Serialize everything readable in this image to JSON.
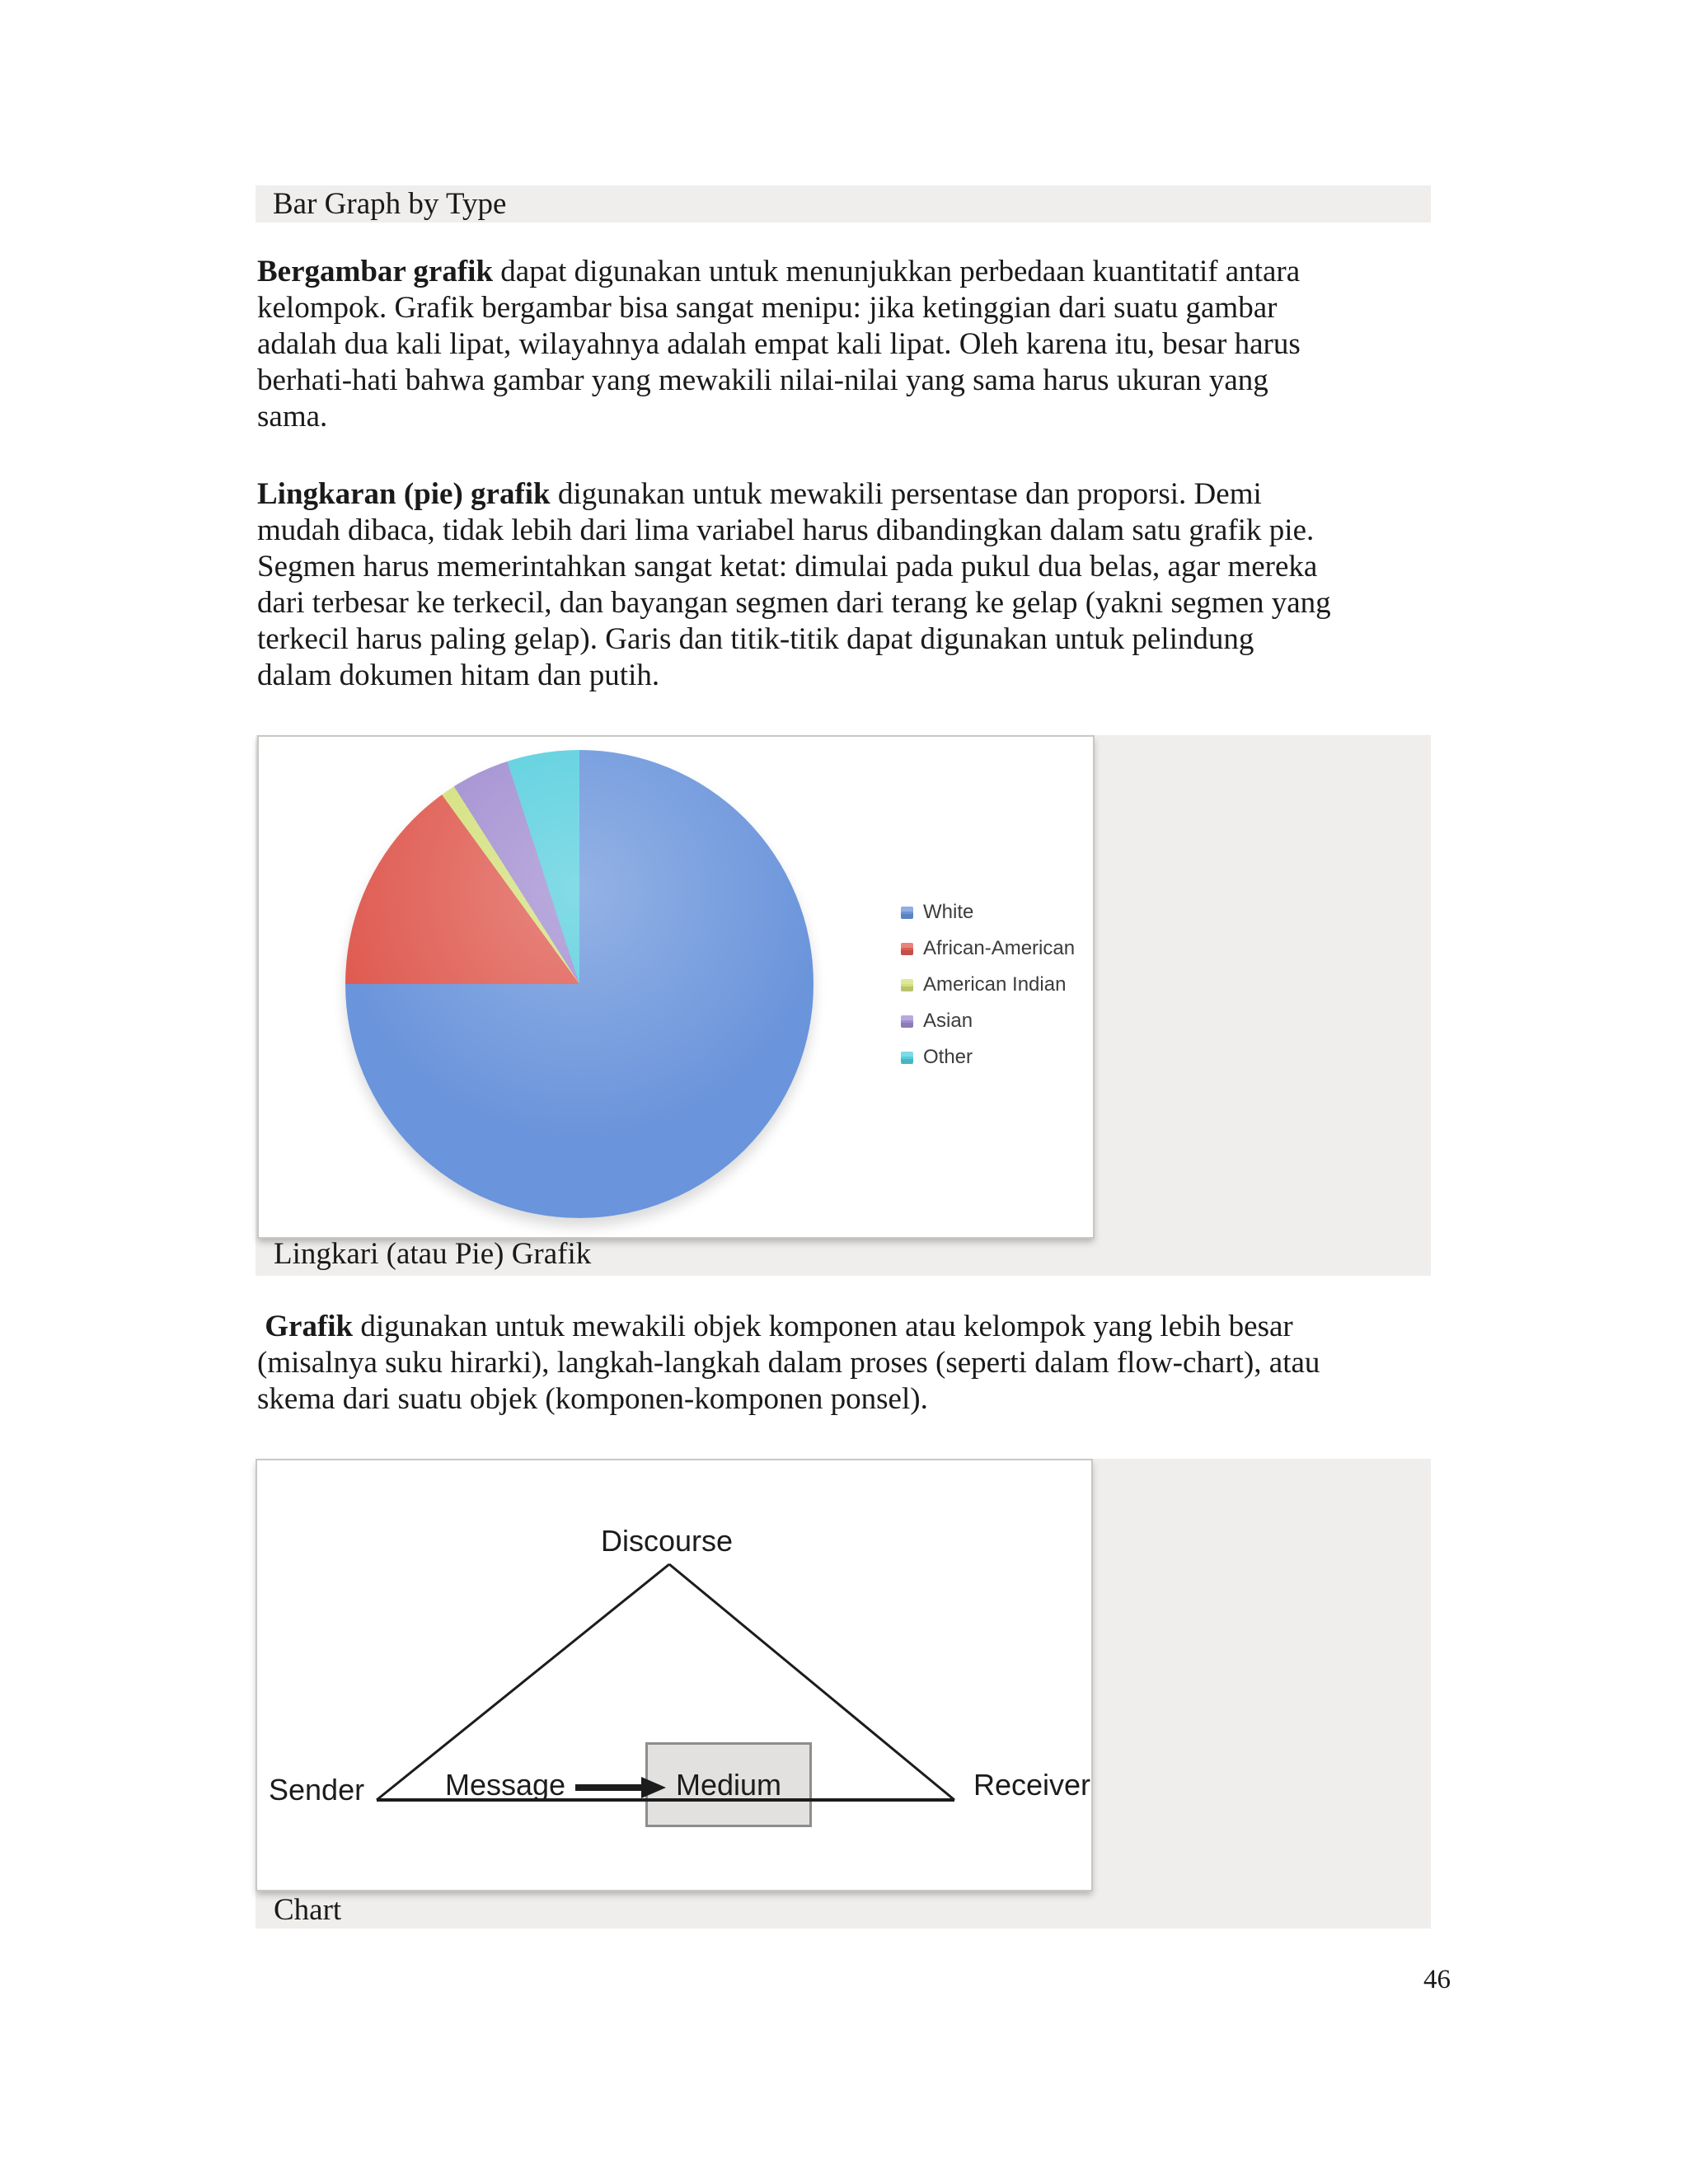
{
  "header": {
    "title": "Bar Graph by Type"
  },
  "paragraphs": {
    "p1": {
      "lead": "Bergambar grafik",
      "text": " dapat digunakan untuk menunjukkan perbedaan kuantitatif antara\nkelompok.  Grafik bergambar bisa sangat menipu: jika ketinggian dari suatu gambar\nadalah dua kali lipat, wilayahnya adalah empat kali lipat.  Oleh karena itu, besar harus\nberhati-hati bahwa gambar yang mewakili nilai-nilai yang sama harus ukuran yang\nsama."
    },
    "p2": {
      "lead": "Lingkaran (pie) grafik",
      "text": " digunakan untuk mewakili persentase dan proporsi.  Demi\nmudah dibaca, tidak lebih dari lima variabel harus dibandingkan dalam satu grafik pie.\nSegmen harus memerintahkan sangat ketat: dimulai pada pukul dua belas, agar mereka\ndari terbesar ke terkecil, dan bayangan segmen dari terang ke gelap (yakni segmen yang\nterkecil harus paling gelap).  Garis dan titik-titik dapat digunakan untuk pelindung\ndalam dokumen hitam dan putih."
    },
    "p3": {
      "lead": " Grafik",
      "text": " digunakan untuk mewakili objek komponen atau kelompok yang lebih besar\n(misalnya suku hirarki), langkah-langkah dalam proses (seperti dalam flow-chart), atau\nskema dari suatu objek (komponen-komponen ponsel)."
    }
  },
  "chart_data": {
    "type": "pie",
    "title": "",
    "labels": [
      "White",
      "African-American",
      "American Indian",
      "Asian",
      "Other"
    ],
    "values": [
      75,
      15,
      1,
      4,
      5
    ],
    "colors": [
      "#6A94DB",
      "#DF5B51",
      "#D3E07C",
      "#A08CD0",
      "#55CEDD"
    ],
    "legend_position": "right",
    "start_angle_deg": 0,
    "direction": "clockwise"
  },
  "pie_figure": {
    "caption": "Lingkari (atau Pie) Grafik"
  },
  "diagram_figure": {
    "caption": "Chart",
    "labels": {
      "discourse": "Discourse",
      "sender": "Sender",
      "message": "Message",
      "medium": "Medium",
      "receiver": "Receiver"
    }
  },
  "page": {
    "number": "46"
  },
  "colors": {
    "panel": "#EFEEEC",
    "box-border": "#C9C7C4",
    "ink": "#1A1A1A",
    "diagram-ink": "#1C1C1C",
    "legend-text": "#3C3C3C",
    "medium-box-fill": "#E2E1DF",
    "medium-box-border": "#8F8D8B"
  }
}
